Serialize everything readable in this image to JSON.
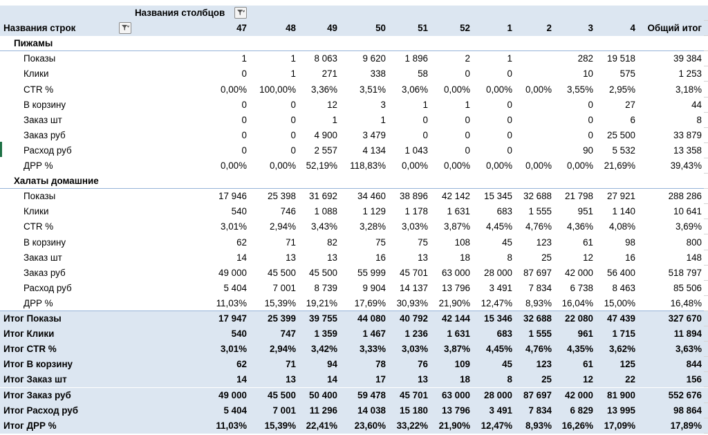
{
  "header": {
    "col_fields_label": "Названия столбцов",
    "row_fields_label": "Названия строк",
    "columns": [
      "47",
      "48",
      "49",
      "50",
      "51",
      "52",
      "1",
      "2",
      "3",
      "4",
      "Общий итог"
    ]
  },
  "groups": [
    {
      "name": "Пижамы",
      "rows": [
        {
          "label": "Показы",
          "values": [
            "1",
            "1",
            "8 063",
            "9 620",
            "1 896",
            "2",
            "1",
            "",
            "282",
            "19 518",
            "39 384"
          ]
        },
        {
          "label": "Клики",
          "values": [
            "0",
            "1",
            "271",
            "338",
            "58",
            "0",
            "0",
            "",
            "10",
            "575",
            "1 253"
          ]
        },
        {
          "label": "CTR %",
          "values": [
            "0,00%",
            "100,00%",
            "3,36%",
            "3,51%",
            "3,06%",
            "0,00%",
            "0,00%",
            "0,00%",
            "3,55%",
            "2,95%",
            "3,18%"
          ]
        },
        {
          "label": "В корзину",
          "values": [
            "0",
            "0",
            "12",
            "3",
            "1",
            "1",
            "0",
            "",
            "0",
            "27",
            "44"
          ]
        },
        {
          "label": "Заказ шт",
          "values": [
            "0",
            "0",
            "1",
            "1",
            "0",
            "0",
            "0",
            "",
            "0",
            "6",
            "8"
          ]
        },
        {
          "label": "Заказ руб",
          "values": [
            "0",
            "0",
            "4 900",
            "3 479",
            "0",
            "0",
            "0",
            "",
            "0",
            "25 500",
            "33 879"
          ]
        },
        {
          "label": "Расход руб",
          "values": [
            "0",
            "0",
            "2 557",
            "4 134",
            "1 043",
            "0",
            "0",
            "",
            "90",
            "5 532",
            "13 358"
          ]
        },
        {
          "label": "ДРР %",
          "values": [
            "0,00%",
            "0,00%",
            "52,19%",
            "118,83%",
            "0,00%",
            "0,00%",
            "0,00%",
            "0,00%",
            "0,00%",
            "21,69%",
            "39,43%"
          ]
        }
      ]
    },
    {
      "name": "Халаты домашние",
      "rows": [
        {
          "label": "Показы",
          "values": [
            "17 946",
            "25 398",
            "31 692",
            "34 460",
            "38 896",
            "42 142",
            "15 345",
            "32 688",
            "21 798",
            "27 921",
            "288 286"
          ]
        },
        {
          "label": "Клики",
          "values": [
            "540",
            "746",
            "1 088",
            "1 129",
            "1 178",
            "1 631",
            "683",
            "1 555",
            "951",
            "1 140",
            "10 641"
          ]
        },
        {
          "label": "CTR %",
          "values": [
            "3,01%",
            "2,94%",
            "3,43%",
            "3,28%",
            "3,03%",
            "3,87%",
            "4,45%",
            "4,76%",
            "4,36%",
            "4,08%",
            "3,69%"
          ]
        },
        {
          "label": "В корзину",
          "values": [
            "62",
            "71",
            "82",
            "75",
            "75",
            "108",
            "45",
            "123",
            "61",
            "98",
            "800"
          ]
        },
        {
          "label": "Заказ шт",
          "values": [
            "14",
            "13",
            "13",
            "16",
            "13",
            "18",
            "8",
            "25",
            "12",
            "16",
            "148"
          ]
        },
        {
          "label": "Заказ руб",
          "values": [
            "49 000",
            "45 500",
            "45 500",
            "55 999",
            "45 701",
            "63 000",
            "28 000",
            "87 697",
            "42 000",
            "56 400",
            "518 797"
          ]
        },
        {
          "label": "Расход руб",
          "values": [
            "5 404",
            "7 001",
            "8 739",
            "9 904",
            "14 137",
            "13 796",
            "3 491",
            "7 834",
            "6 738",
            "8 463",
            "85 506"
          ]
        },
        {
          "label": "ДРР %",
          "values": [
            "11,03%",
            "15,39%",
            "19,21%",
            "17,69%",
            "30,93%",
            "21,90%",
            "12,47%",
            "8,93%",
            "16,04%",
            "15,00%",
            "16,48%"
          ]
        }
      ]
    }
  ],
  "totals": [
    {
      "label": "Итог Показы",
      "values": [
        "17 947",
        "25 399",
        "39 755",
        "44 080",
        "40 792",
        "42 144",
        "15 346",
        "32 688",
        "22 080",
        "47 439",
        "327 670"
      ]
    },
    {
      "label": "Итог Клики",
      "values": [
        "540",
        "747",
        "1 359",
        "1 467",
        "1 236",
        "1 631",
        "683",
        "1 555",
        "961",
        "1 715",
        "11 894"
      ]
    },
    {
      "label": "Итог CTR %",
      "values": [
        "3,01%",
        "2,94%",
        "3,42%",
        "3,33%",
        "3,03%",
        "3,87%",
        "4,45%",
        "4,76%",
        "4,35%",
        "3,62%",
        "3,63%"
      ]
    },
    {
      "label": "Итог В корзину",
      "values": [
        "62",
        "71",
        "94",
        "78",
        "76",
        "109",
        "45",
        "123",
        "61",
        "125",
        "844"
      ]
    },
    {
      "label": "Итог Заказ шт",
      "values": [
        "14",
        "13",
        "14",
        "17",
        "13",
        "18",
        "8",
        "25",
        "12",
        "22",
        "156"
      ]
    },
    {
      "label": "Итог Заказ руб",
      "values": [
        "49 000",
        "45 500",
        "50 400",
        "59 478",
        "45 701",
        "63 000",
        "28 000",
        "87 697",
        "42 000",
        "81 900",
        "552 676"
      ]
    },
    {
      "label": "Итог Расход руб",
      "values": [
        "5 404",
        "7 001",
        "11 296",
        "14 038",
        "15 180",
        "13 796",
        "3 491",
        "7 834",
        "6 829",
        "13 995",
        "98 864"
      ]
    },
    {
      "label": "Итог ДРР %",
      "values": [
        "11,03%",
        "15,39%",
        "22,41%",
        "23,60%",
        "33,22%",
        "21,90%",
        "12,47%",
        "8,93%",
        "16,26%",
        "17,09%",
        "17,89%"
      ]
    }
  ],
  "colors": {
    "header_fill": "#dce6f1",
    "border": "#95b3d7",
    "selection_marker": "#1e7145"
  },
  "icons": [
    "filter-icon"
  ]
}
